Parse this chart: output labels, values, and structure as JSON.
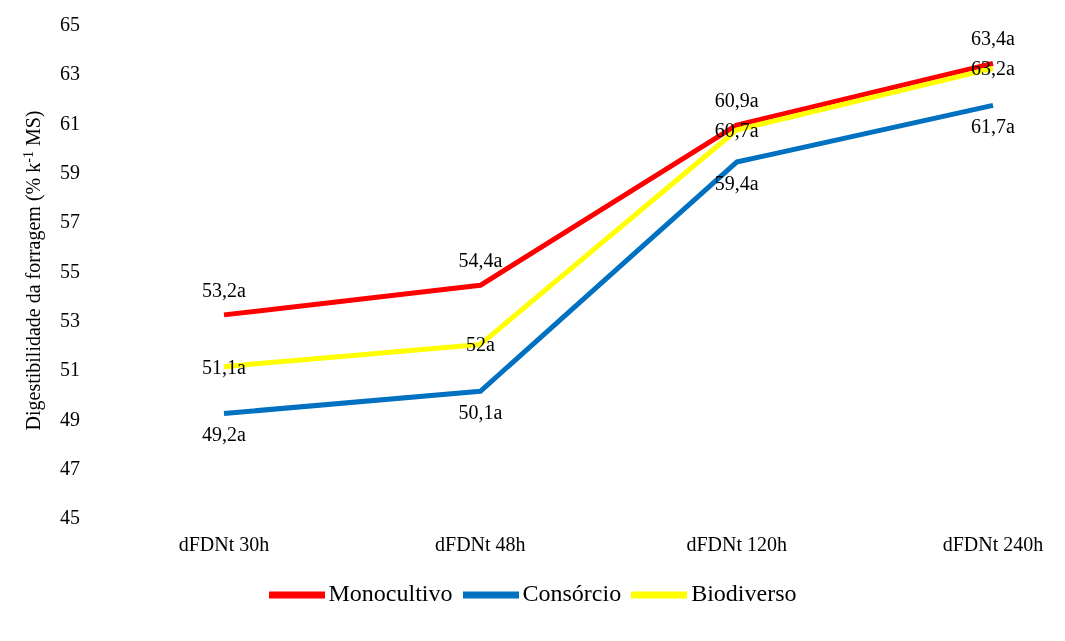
{
  "chart_data": {
    "type": "line",
    "ylabel": "Digestibilidade da forragem (% k$^{-1}$ MS)",
    "categories": [
      "dFDNt 30h",
      "dFDNt 48h",
      "dFDNt 120h",
      "dFDNt 240h"
    ],
    "series": [
      {
        "name": "Monocultivo",
        "color": "#ff0000",
        "values": [
          53.2,
          54.4,
          60.9,
          63.4
        ],
        "value_labels": [
          "53,2a",
          "54,4a",
          "60,9a",
          "63,4a"
        ]
      },
      {
        "name": "Consórcio",
        "color": "#0070c0",
        "values": [
          49.2,
          50.1,
          59.4,
          61.7
        ],
        "value_labels": [
          "49,2a",
          "50,1a",
          "59,4a",
          "61,7a"
        ]
      },
      {
        "name": "Biodiverso",
        "color": "#ffff00",
        "values": [
          51.1,
          52,
          60.7,
          63.2
        ],
        "value_labels": [
          "51,1a",
          "52a",
          "60,7a",
          "63,2a"
        ]
      }
    ],
    "ylim": [
      45,
      65
    ],
    "yticks": [
      45,
      47,
      49,
      51,
      53,
      55,
      57,
      59,
      61,
      63,
      65
    ],
    "grid": false,
    "legend": "bottom",
    "marker": "none",
    "line_style": "solid"
  }
}
